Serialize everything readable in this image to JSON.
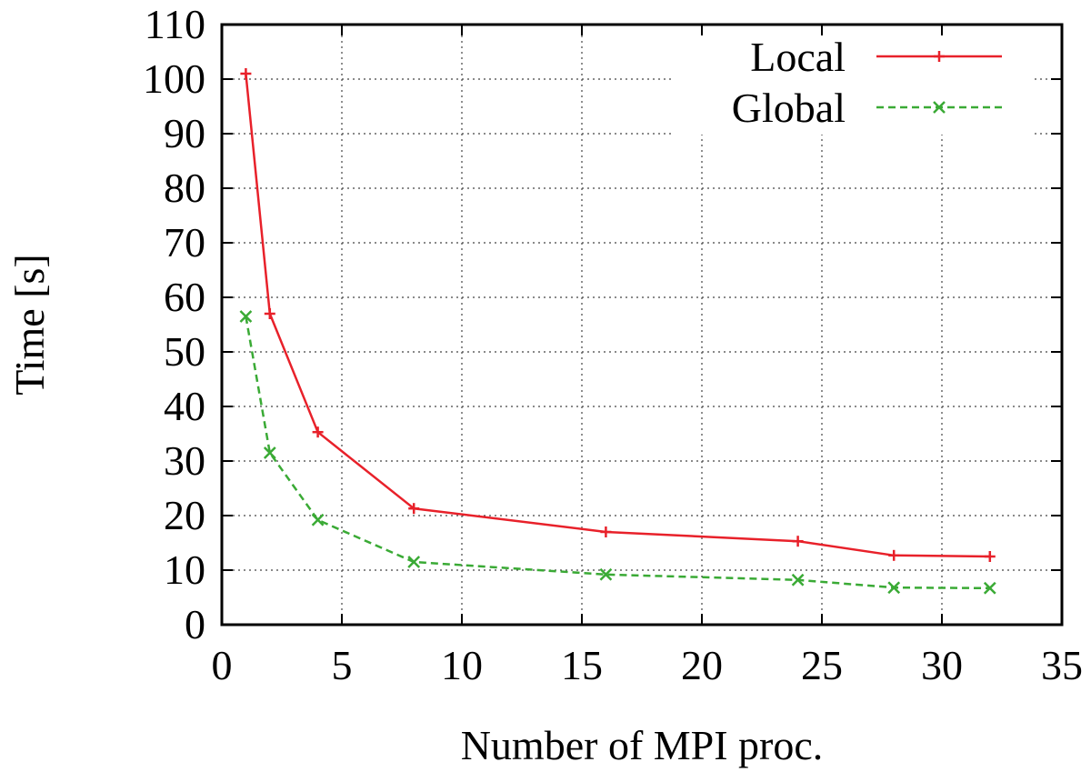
{
  "chart_data": {
    "type": "line",
    "title": "",
    "xlabel": "Number of MPI proc.",
    "ylabel": "Time [s]",
    "xlim": [
      0,
      35
    ],
    "ylim": [
      0,
      110
    ],
    "xticks": [
      0,
      5,
      10,
      15,
      20,
      25,
      30,
      35
    ],
    "yticks": [
      0,
      10,
      20,
      30,
      40,
      50,
      60,
      70,
      80,
      90,
      100,
      110
    ],
    "grid": true,
    "legend_position": "top-right",
    "series": [
      {
        "name": "Local",
        "color": "#e8212a",
        "line_style": "solid",
        "marker": "plus",
        "x": [
          1,
          2,
          4,
          8,
          16,
          24,
          28,
          32
        ],
        "y": [
          101,
          57,
          35.3,
          21.3,
          17,
          15.3,
          12.7,
          12.5
        ]
      },
      {
        "name": "Global",
        "color": "#3aaa35",
        "line_style": "dashed",
        "marker": "cross",
        "x": [
          1,
          2,
          4,
          8,
          16,
          24,
          28,
          32
        ],
        "y": [
          56.5,
          31.5,
          19.2,
          11.5,
          9.2,
          8.2,
          6.8,
          6.7
        ]
      }
    ]
  }
}
